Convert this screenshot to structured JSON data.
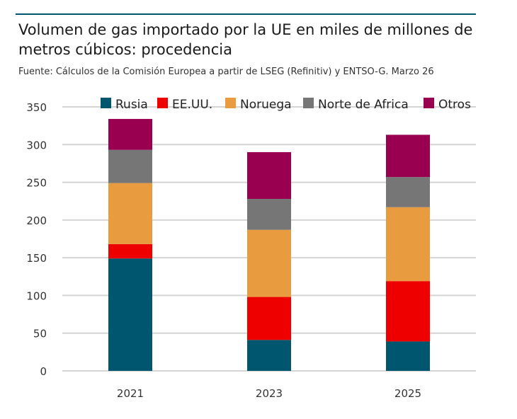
{
  "chart_data": {
    "type": "bar",
    "stacked": true,
    "title": "Volumen de gas importado por la UE en miles de millones de metros cúbicos: procedencia",
    "subtitle": "Fuente: Cálculos de la Comisión Europea a partir de LSEG (Refinitiv) y ENTSO-G. Marzo 26",
    "categories": [
      "2021",
      "2023",
      "2025"
    ],
    "series": [
      {
        "name": "Rusia",
        "color": "#00566f",
        "values": [
          149,
          41,
          39
        ]
      },
      {
        "name": "EE.UU.",
        "color": "#ee0000",
        "values": [
          19,
          57,
          80
        ]
      },
      {
        "name": "Noruega",
        "color": "#e89c3f",
        "values": [
          81,
          89,
          98
        ]
      },
      {
        "name": "Norte de Africa",
        "color": "#767676",
        "values": [
          44,
          41,
          40
        ]
      },
      {
        "name": "Otros",
        "color": "#990050",
        "values": [
          41,
          62,
          56
        ]
      }
    ],
    "ylim": [
      0,
      350
    ],
    "yticks": [
      0,
      50,
      100,
      150,
      200,
      250,
      300,
      350
    ],
    "grid": true,
    "legend": "top"
  }
}
